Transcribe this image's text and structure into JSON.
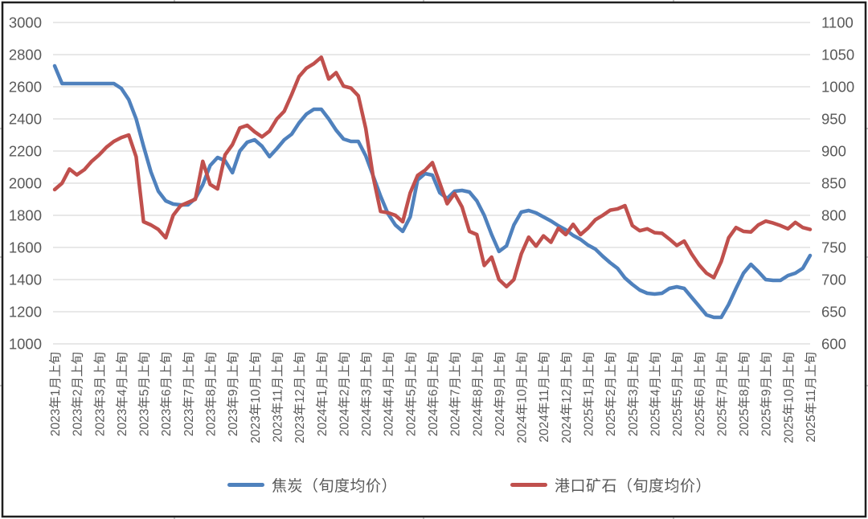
{
  "colors": {
    "background": "#FFFFFF",
    "border": "#1f1f1f",
    "grid": "#D9D9D9",
    "axis_text": "#595959",
    "edge_tick": "#c9c9c9",
    "series_coke": "#4F81BD",
    "series_ore": "#C0504D"
  },
  "legend": {
    "items": [
      {
        "label": "焦炭（旬度均价）",
        "color": "#4F81BD"
      },
      {
        "label": "港口矿石（旬度均价）",
        "color": "#C0504D"
      }
    ]
  },
  "chart_data": {
    "type": "line",
    "title": "",
    "grid": true,
    "legend_position": "bottom",
    "x_resolution": "旬 (3 data points per month: 上旬/中旬/下旬)",
    "tick_every_n_points": 3,
    "x_tick_labels": [
      "2023年1月上旬",
      "2023年2月上旬",
      "2023年3月上旬",
      "2023年4月上旬",
      "2023年5月上旬",
      "2023年6月上旬",
      "2023年7月上旬",
      "2023年8月上旬",
      "2023年9月上旬",
      "2023年10月上旬",
      "2023年11月上旬",
      "2023年12月上旬",
      "2024年1月上旬",
      "2024年2月上旬",
      "2024年3月上旬",
      "2024年4月上旬",
      "2024年5月上旬",
      "2024年6月上旬",
      "2024年7月上旬",
      "2024年8月上旬",
      "2024年9月上旬",
      "2024年10月上旬",
      "2024年11月上旬",
      "2024年12月上旬",
      "2025年1月上旬",
      "2025年2月上旬",
      "2025年3月上旬",
      "2025年4月上旬",
      "2025年5月上旬",
      "2025年6月上旬",
      "2025年7月上旬",
      "2025年8月上旬",
      "2025年9月上旬",
      "2025年10月上旬",
      "2025年11月上旬"
    ],
    "left_axis": {
      "min": 1000,
      "max": 3000,
      "step": 200,
      "ticks": [
        3000,
        2800,
        2600,
        2400,
        2200,
        2000,
        1800,
        1600,
        1400,
        1200,
        1000
      ]
    },
    "right_axis": {
      "min": 600,
      "max": 1100,
      "step": 50,
      "ticks": [
        1100,
        1050,
        1000,
        950,
        900,
        850,
        800,
        750,
        700,
        650,
        600
      ]
    },
    "series": [
      {
        "name": "焦炭（旬度均价）",
        "axis": "left",
        "color": "#4F81BD",
        "values": [
          2730,
          2620,
          2620,
          2620,
          2620,
          2620,
          2620,
          2620,
          2620,
          2590,
          2520,
          2400,
          2230,
          2070,
          1950,
          1890,
          1870,
          1865,
          1865,
          1905,
          1990,
          2110,
          2160,
          2140,
          2065,
          2200,
          2255,
          2270,
          2230,
          2165,
          2215,
          2270,
          2305,
          2375,
          2430,
          2460,
          2460,
          2400,
          2330,
          2275,
          2260,
          2260,
          2170,
          2045,
          1920,
          1810,
          1740,
          1700,
          1790,
          2020,
          2060,
          2050,
          1940,
          1905,
          1950,
          1955,
          1945,
          1890,
          1800,
          1680,
          1575,
          1610,
          1740,
          1820,
          1830,
          1815,
          1790,
          1765,
          1735,
          1710,
          1675,
          1650,
          1615,
          1590,
          1545,
          1505,
          1470,
          1410,
          1370,
          1335,
          1315,
          1310,
          1315,
          1345,
          1355,
          1345,
          1290,
          1235,
          1180,
          1165,
          1165,
          1245,
          1345,
          1440,
          1495,
          1450,
          1400,
          1395,
          1395,
          1425,
          1440,
          1470,
          1550
        ]
      },
      {
        "name": "港口矿石（旬度均价）",
        "axis": "right",
        "color": "#C0504D",
        "values": [
          840,
          850,
          872,
          863,
          871,
          884,
          894,
          906,
          915,
          921,
          925,
          891,
          790,
          785,
          778,
          765,
          800,
          815,
          820,
          825,
          884,
          848,
          841,
          894,
          910,
          936,
          940,
          930,
          922,
          931,
          950,
          962,
          988,
          1016,
          1029,
          1036,
          1046,
          1012,
          1022,
          1001,
          998,
          986,
          935,
          860,
          806,
          804,
          800,
          790,
          835,
          862,
          870,
          882,
          850,
          818,
          834,
          813,
          775,
          770,
          722,
          735,
          700,
          689,
          700,
          740,
          766,
          752,
          768,
          758,
          780,
          770,
          786,
          770,
          780,
          793,
          800,
          808,
          810,
          815,
          784,
          776,
          779,
          773,
          772,
          763,
          753,
          760,
          740,
          723,
          710,
          703,
          728,
          765,
          781,
          775,
          774,
          785,
          791,
          788,
          784,
          779,
          789,
          781,
          778
        ]
      }
    ]
  }
}
